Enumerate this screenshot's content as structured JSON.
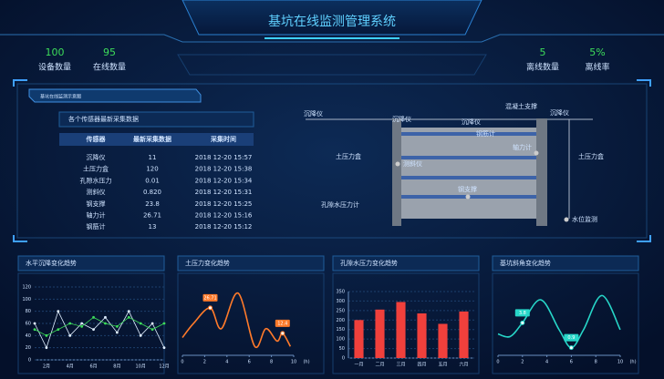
{
  "header": {
    "title": "基坑在线监测管理系统"
  },
  "stats": [
    {
      "value": "100",
      "label": "设备数量"
    },
    {
      "value": "95",
      "label": "在线数量"
    },
    {
      "value": "5",
      "label": "离线数量"
    },
    {
      "value": "5%",
      "label": "离线率"
    }
  ],
  "panel": {
    "tab": "基坑在线监测示意图",
    "table_title": "各个传感器最新采集数据",
    "table": {
      "columns": [
        "传感器",
        "最新采集数据",
        "采集时间"
      ],
      "rows": [
        [
          "沉降仪",
          "11",
          "2018 12-20 15:57"
        ],
        [
          "土压力盒",
          "120",
          "2018 12-20 15:38"
        ],
        [
          "孔隙水压力",
          "0.01",
          "2018 12-20 15:34"
        ],
        [
          "测斜仪",
          "0.820",
          "2018 12-20 15:31"
        ],
        [
          "钢支撑",
          "23.8",
          "2018 12-20 15:25"
        ],
        [
          "轴力计",
          "26.71",
          "2018 12-20 15:16"
        ],
        [
          "钢筋计",
          "13",
          "2018 12-20 15:12"
        ]
      ]
    }
  },
  "diagram": {
    "labels": [
      "沉降仪",
      "沉降仪",
      "沉降仪",
      "混凝土支撑",
      "沉降仪",
      "钢筋计",
      "轴力计",
      "土压力盒",
      "测斜仪",
      "土压力盒",
      "钢支撑",
      "孔隙水压力计",
      "水位监测"
    ]
  },
  "chart_data": [
    {
      "type": "line",
      "title": "水平沉降变化趋势",
      "categories": [
        null,
        "2月",
        null,
        "4月",
        null,
        "6月",
        null,
        "8月",
        null,
        "10月",
        null,
        "12月"
      ],
      "series": [
        {
          "color": "#dfeeff",
          "values": [
            60,
            20,
            80,
            40,
            60,
            50,
            70,
            45,
            80,
            40,
            60,
            20
          ]
        },
        {
          "color": "#3ddc5a",
          "values": [
            50,
            40,
            50,
            60,
            55,
            70,
            60,
            55,
            70,
            60,
            50,
            60
          ]
        }
      ],
      "ylim": [
        0,
        120
      ],
      "yticks": [
        0,
        20,
        40,
        60,
        80,
        100,
        120
      ],
      "grid": true
    },
    {
      "type": "spline",
      "title": "土压力变化趋势",
      "x": [
        0,
        1,
        2.5,
        3.5,
        5,
        6.5,
        7.5,
        8.5,
        9,
        9.7
      ],
      "values": [
        10,
        18,
        26.71,
        15,
        35,
        5,
        15,
        8,
        12.4,
        5
      ],
      "value_labels": [
        null,
        null,
        "26.71",
        null,
        null,
        null,
        null,
        null,
        "12.4",
        null
      ],
      "color": "#ff7a2a",
      "xlim": [
        0,
        10
      ],
      "xticks": [
        0,
        2,
        4,
        6,
        8,
        10
      ],
      "xlabel": "(h)",
      "ylim": [
        0,
        40
      ],
      "grid": false
    },
    {
      "type": "bar",
      "title": "孔隙水压力变化趋势",
      "categories": [
        "一月",
        "二月",
        "三月",
        "四月",
        "五月",
        "六月"
      ],
      "values": [
        200,
        255,
        295,
        235,
        180,
        245
      ],
      "color": "#f0403c",
      "ylim": [
        0,
        350
      ],
      "yticks": [
        0,
        50,
        100,
        150,
        200,
        250,
        300,
        350
      ],
      "grid": true
    },
    {
      "type": "spline",
      "title": "基坑斜角变化趋势",
      "x": [
        0,
        1,
        2,
        3.5,
        5,
        6,
        7,
        8.5,
        10
      ],
      "values": [
        2.5,
        2.2,
        3.8,
        6.5,
        3,
        0.9,
        3,
        7,
        3
      ],
      "value_labels": [
        null,
        null,
        "3.8",
        null,
        null,
        "0.9",
        null,
        null,
        null
      ],
      "color": "#27d6c8",
      "xlim": [
        0,
        10
      ],
      "xticks": [
        0,
        2,
        4,
        6,
        8,
        10
      ],
      "xlabel": "(h)",
      "ylim": [
        0,
        8
      ],
      "grid": false
    }
  ]
}
